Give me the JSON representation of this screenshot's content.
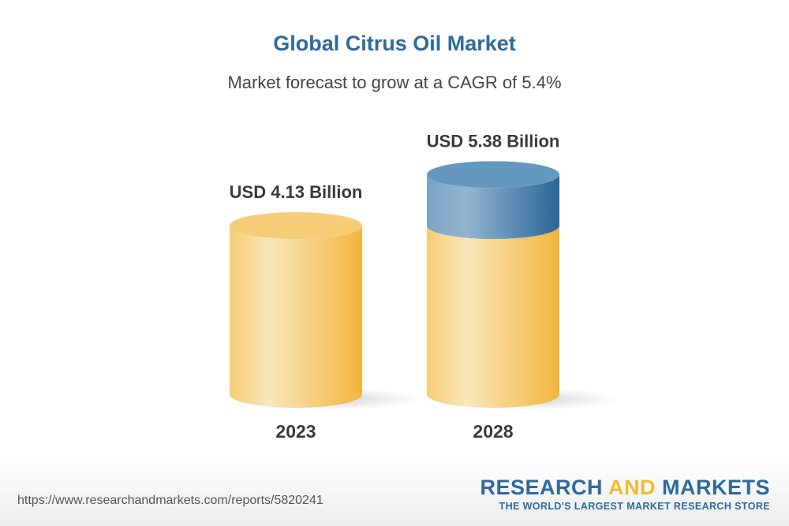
{
  "header": {
    "title": "Global Citrus Oil Market",
    "subtitle": "Market forecast to grow at a CAGR of 5.4%"
  },
  "chart_data": {
    "type": "bar",
    "style": "3d-cylinder",
    "categories": [
      "2023",
      "2028"
    ],
    "values": [
      4.13,
      5.38
    ],
    "data_labels": [
      "USD 4.13 Billion",
      "USD 5.38 Billion"
    ],
    "unit": "USD Billion",
    "cagr": "5.4%",
    "colors": {
      "base": "#f2b935",
      "base_light": "#fbe6bc",
      "growth": "#2e6a9c",
      "growth_light": "#93b4cf"
    }
  },
  "footer": {
    "url": "https://www.researchandmarkets.com/reports/5820241",
    "logo_part1": "RESEARCH ",
    "logo_part2": "AND",
    "logo_part3": " MARKETS",
    "tagline": "THE WORLD'S LARGEST MARKET RESEARCH STORE"
  }
}
